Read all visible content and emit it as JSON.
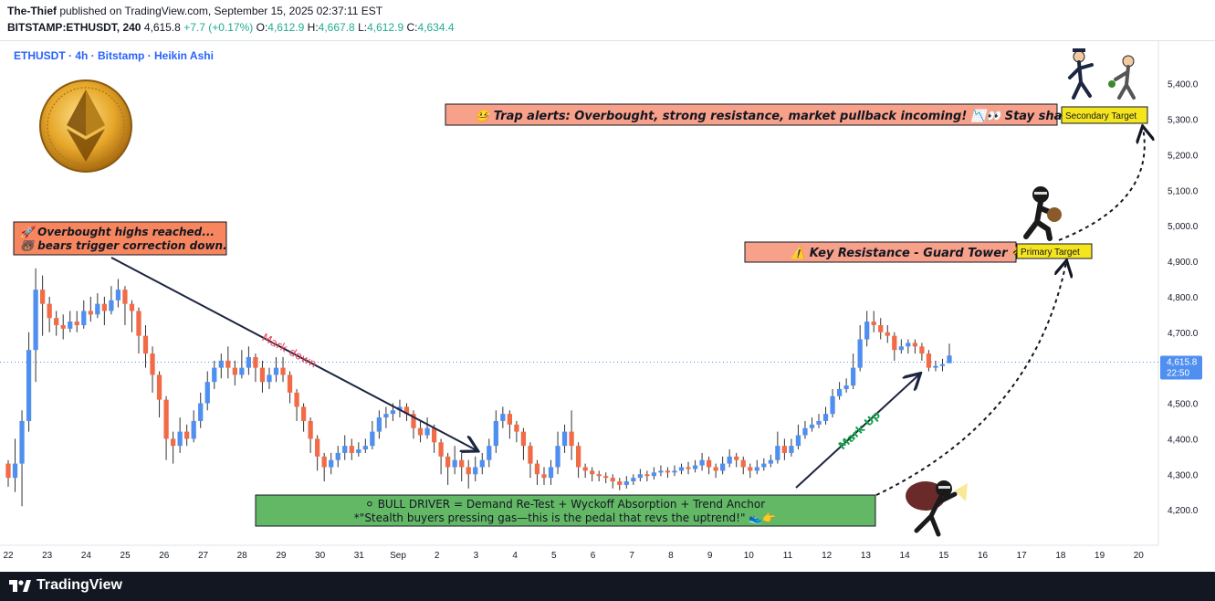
{
  "header": {
    "author": "The-Thief",
    "published_text": " published on TradingView.com, September 15, 2025 02:37:11 EST",
    "symbol": "BITSTAMP:ETHUSDT, 240",
    "last": "4,615.8",
    "change": "+7.7 (+0.17%)",
    "o_label": "O:",
    "o_value": "4,612.9",
    "h_label": "H:",
    "h_value": "4,667.8",
    "l_label": "L:",
    "l_value": "4,612.9",
    "c_label": "C:",
    "c_value": "4,634.4"
  },
  "chart": {
    "legend": "ETHUSDT · 4h · Bitstamp · Heikin Ashi",
    "price_label": "4,615.8",
    "countdown": "22:50",
    "colors": {
      "up": "#4f8ff0",
      "down": "#f26b47",
      "price_line": "#4f8ff0"
    }
  },
  "chart_data": {
    "type": "candlestick",
    "y_ticks": [
      "5,400.0",
      "5,300.0",
      "5,200.0",
      "5,100.0",
      "5,000.0",
      "4,900.0",
      "4,800.0",
      "4,700.0",
      "4,600.0",
      "4,500.0",
      "4,400.0",
      "4,300.0",
      "4,200.0"
    ],
    "ylim": [
      4100,
      5520
    ],
    "x_ticks": [
      "22",
      "23",
      "24",
      "25",
      "26",
      "27",
      "28",
      "29",
      "30",
      "31",
      "Sep",
      "2",
      "3",
      "4",
      "5",
      "6",
      "7",
      "8",
      "9",
      "10",
      "11",
      "12",
      "13",
      "14",
      "15",
      "16",
      "17",
      "18",
      "19",
      "20"
    ],
    "current_price": 4615.8,
    "candles": [
      {
        "o": 4330,
        "c": 4290,
        "h": 4340,
        "l": 4265
      },
      {
        "o": 4290,
        "c": 4330,
        "h": 4400,
        "l": 4250
      },
      {
        "o": 4330,
        "c": 4450,
        "h": 4480,
        "l": 4210
      },
      {
        "o": 4450,
        "c": 4650,
        "h": 4700,
        "l": 4420
      },
      {
        "o": 4650,
        "c": 4820,
        "h": 4880,
        "l": 4560
      },
      {
        "o": 4820,
        "c": 4780,
        "h": 4860,
        "l": 4690
      },
      {
        "o": 4780,
        "c": 4740,
        "h": 4800,
        "l": 4700
      },
      {
        "o": 4740,
        "c": 4720,
        "h": 4760,
        "l": 4690
      },
      {
        "o": 4720,
        "c": 4710,
        "h": 4750,
        "l": 4680
      },
      {
        "o": 4710,
        "c": 4730,
        "h": 4760,
        "l": 4700
      },
      {
        "o": 4730,
        "c": 4720,
        "h": 4760,
        "l": 4700
      },
      {
        "o": 4720,
        "c": 4760,
        "h": 4790,
        "l": 4710
      },
      {
        "o": 4760,
        "c": 4750,
        "h": 4800,
        "l": 4730
      },
      {
        "o": 4750,
        "c": 4780,
        "h": 4810,
        "l": 4740
      },
      {
        "o": 4780,
        "c": 4760,
        "h": 4800,
        "l": 4720
      },
      {
        "o": 4760,
        "c": 4790,
        "h": 4830,
        "l": 4750
      },
      {
        "o": 4790,
        "c": 4820,
        "h": 4850,
        "l": 4770
      },
      {
        "o": 4820,
        "c": 4780,
        "h": 4830,
        "l": 4720
      },
      {
        "o": 4780,
        "c": 4760,
        "h": 4790,
        "l": 4700
      },
      {
        "o": 4760,
        "c": 4690,
        "h": 4770,
        "l": 4640
      },
      {
        "o": 4690,
        "c": 4640,
        "h": 4720,
        "l": 4600
      },
      {
        "o": 4640,
        "c": 4580,
        "h": 4660,
        "l": 4530
      },
      {
        "o": 4580,
        "c": 4510,
        "h": 4590,
        "l": 4460
      },
      {
        "o": 4510,
        "c": 4400,
        "h": 4520,
        "l": 4340
      },
      {
        "o": 4400,
        "c": 4380,
        "h": 4420,
        "l": 4330
      },
      {
        "o": 4380,
        "c": 4420,
        "h": 4460,
        "l": 4360
      },
      {
        "o": 4420,
        "c": 4400,
        "h": 4440,
        "l": 4380
      },
      {
        "o": 4400,
        "c": 4450,
        "h": 4480,
        "l": 4390
      },
      {
        "o": 4450,
        "c": 4500,
        "h": 4530,
        "l": 4430
      },
      {
        "o": 4500,
        "c": 4560,
        "h": 4590,
        "l": 4480
      },
      {
        "o": 4560,
        "c": 4600,
        "h": 4620,
        "l": 4540
      },
      {
        "o": 4600,
        "c": 4620,
        "h": 4640,
        "l": 4570
      },
      {
        "o": 4620,
        "c": 4600,
        "h": 4660,
        "l": 4570
      },
      {
        "o": 4600,
        "c": 4580,
        "h": 4620,
        "l": 4550
      },
      {
        "o": 4580,
        "c": 4600,
        "h": 4650,
        "l": 4570
      },
      {
        "o": 4600,
        "c": 4630,
        "h": 4660,
        "l": 4580
      },
      {
        "o": 4630,
        "c": 4600,
        "h": 4640,
        "l": 4560
      },
      {
        "o": 4600,
        "c": 4560,
        "h": 4620,
        "l": 4530
      },
      {
        "o": 4560,
        "c": 4580,
        "h": 4600,
        "l": 4540
      },
      {
        "o": 4580,
        "c": 4600,
        "h": 4630,
        "l": 4560
      },
      {
        "o": 4600,
        "c": 4580,
        "h": 4630,
        "l": 4560
      },
      {
        "o": 4580,
        "c": 4530,
        "h": 4590,
        "l": 4500
      },
      {
        "o": 4530,
        "c": 4490,
        "h": 4540,
        "l": 4450
      },
      {
        "o": 4490,
        "c": 4450,
        "h": 4500,
        "l": 4420
      },
      {
        "o": 4450,
        "c": 4400,
        "h": 4460,
        "l": 4360
      },
      {
        "o": 4400,
        "c": 4350,
        "h": 4410,
        "l": 4310
      },
      {
        "o": 4350,
        "c": 4320,
        "h": 4360,
        "l": 4280
      },
      {
        "o": 4320,
        "c": 4340,
        "h": 4360,
        "l": 4300
      },
      {
        "o": 4340,
        "c": 4360,
        "h": 4380,
        "l": 4320
      },
      {
        "o": 4360,
        "c": 4380,
        "h": 4410,
        "l": 4340
      },
      {
        "o": 4380,
        "c": 4360,
        "h": 4400,
        "l": 4340
      },
      {
        "o": 4360,
        "c": 4370,
        "h": 4390,
        "l": 4350
      },
      {
        "o": 4370,
        "c": 4380,
        "h": 4400,
        "l": 4360
      },
      {
        "o": 4380,
        "c": 4420,
        "h": 4450,
        "l": 4370
      },
      {
        "o": 4420,
        "c": 4460,
        "h": 4480,
        "l": 4400
      },
      {
        "o": 4460,
        "c": 4470,
        "h": 4490,
        "l": 4430
      },
      {
        "o": 4470,
        "c": 4480,
        "h": 4500,
        "l": 4450
      },
      {
        "o": 4480,
        "c": 4490,
        "h": 4510,
        "l": 4460
      },
      {
        "o": 4490,
        "c": 4470,
        "h": 4500,
        "l": 4450
      },
      {
        "o": 4470,
        "c": 4430,
        "h": 4480,
        "l": 4400
      },
      {
        "o": 4430,
        "c": 4410,
        "h": 4450,
        "l": 4390
      },
      {
        "o": 4410,
        "c": 4430,
        "h": 4460,
        "l": 4400
      },
      {
        "o": 4430,
        "c": 4390,
        "h": 4440,
        "l": 4360
      },
      {
        "o": 4390,
        "c": 4350,
        "h": 4400,
        "l": 4300
      },
      {
        "o": 4350,
        "c": 4320,
        "h": 4360,
        "l": 4270
      },
      {
        "o": 4320,
        "c": 4340,
        "h": 4380,
        "l": 4300
      },
      {
        "o": 4340,
        "c": 4320,
        "h": 4360,
        "l": 4280
      },
      {
        "o": 4320,
        "c": 4300,
        "h": 4340,
        "l": 4260
      },
      {
        "o": 4300,
        "c": 4320,
        "h": 4350,
        "l": 4280
      },
      {
        "o": 4320,
        "c": 4340,
        "h": 4360,
        "l": 4300
      },
      {
        "o": 4340,
        "c": 4380,
        "h": 4400,
        "l": 4320
      },
      {
        "o": 4380,
        "c": 4450,
        "h": 4480,
        "l": 4360
      },
      {
        "o": 4450,
        "c": 4470,
        "h": 4490,
        "l": 4430
      },
      {
        "o": 4470,
        "c": 4440,
        "h": 4480,
        "l": 4400
      },
      {
        "o": 4440,
        "c": 4420,
        "h": 4450,
        "l": 4390
      },
      {
        "o": 4420,
        "c": 4380,
        "h": 4430,
        "l": 4340
      },
      {
        "o": 4380,
        "c": 4330,
        "h": 4390,
        "l": 4290
      },
      {
        "o": 4330,
        "c": 4300,
        "h": 4340,
        "l": 4270
      },
      {
        "o": 4300,
        "c": 4290,
        "h": 4320,
        "l": 4270
      },
      {
        "o": 4290,
        "c": 4320,
        "h": 4340,
        "l": 4270
      },
      {
        "o": 4320,
        "c": 4380,
        "h": 4420,
        "l": 4300
      },
      {
        "o": 4380,
        "c": 4420,
        "h": 4440,
        "l": 4360
      },
      {
        "o": 4420,
        "c": 4380,
        "h": 4480,
        "l": 4340
      },
      {
        "o": 4380,
        "c": 4320,
        "h": 4390,
        "l": 4290
      },
      {
        "o": 4320,
        "c": 4310,
        "h": 4330,
        "l": 4290
      },
      {
        "o": 4310,
        "c": 4300,
        "h": 4320,
        "l": 4280
      },
      {
        "o": 4300,
        "c": 4295,
        "h": 4310,
        "l": 4280
      },
      {
        "o": 4295,
        "c": 4290,
        "h": 4305,
        "l": 4275
      },
      {
        "o": 4290,
        "c": 4280,
        "h": 4300,
        "l": 4260
      },
      {
        "o": 4280,
        "c": 4270,
        "h": 4290,
        "l": 4255
      },
      {
        "o": 4270,
        "c": 4280,
        "h": 4295,
        "l": 4260
      },
      {
        "o": 4280,
        "c": 4290,
        "h": 4300,
        "l": 4270
      },
      {
        "o": 4290,
        "c": 4300,
        "h": 4315,
        "l": 4280
      },
      {
        "o": 4300,
        "c": 4295,
        "h": 4310,
        "l": 4280
      },
      {
        "o": 4295,
        "c": 4305,
        "h": 4320,
        "l": 4285
      },
      {
        "o": 4305,
        "c": 4310,
        "h": 4325,
        "l": 4295
      },
      {
        "o": 4310,
        "c": 4305,
        "h": 4320,
        "l": 4290
      },
      {
        "o": 4305,
        "c": 4310,
        "h": 4325,
        "l": 4295
      },
      {
        "o": 4310,
        "c": 4320,
        "h": 4330,
        "l": 4300
      },
      {
        "o": 4320,
        "c": 4315,
        "h": 4335,
        "l": 4300
      },
      {
        "o": 4315,
        "c": 4325,
        "h": 4340,
        "l": 4305
      },
      {
        "o": 4325,
        "c": 4340,
        "h": 4360,
        "l": 4310
      },
      {
        "o": 4340,
        "c": 4320,
        "h": 4350,
        "l": 4300
      },
      {
        "o": 4320,
        "c": 4310,
        "h": 4330,
        "l": 4290
      },
      {
        "o": 4310,
        "c": 4330,
        "h": 4350,
        "l": 4300
      },
      {
        "o": 4330,
        "c": 4350,
        "h": 4370,
        "l": 4320
      },
      {
        "o": 4350,
        "c": 4340,
        "h": 4360,
        "l": 4320
      },
      {
        "o": 4340,
        "c": 4320,
        "h": 4350,
        "l": 4300
      },
      {
        "o": 4320,
        "c": 4310,
        "h": 4330,
        "l": 4290
      },
      {
        "o": 4310,
        "c": 4320,
        "h": 4340,
        "l": 4300
      },
      {
        "o": 4320,
        "c": 4330,
        "h": 4345,
        "l": 4310
      },
      {
        "o": 4330,
        "c": 4340,
        "h": 4355,
        "l": 4320
      },
      {
        "o": 4340,
        "c": 4380,
        "h": 4420,
        "l": 4330
      },
      {
        "o": 4380,
        "c": 4360,
        "h": 4400,
        "l": 4340
      },
      {
        "o": 4360,
        "c": 4380,
        "h": 4400,
        "l": 4350
      },
      {
        "o": 4380,
        "c": 4410,
        "h": 4440,
        "l": 4370
      },
      {
        "o": 4410,
        "c": 4430,
        "h": 4450,
        "l": 4400
      },
      {
        "o": 4430,
        "c": 4440,
        "h": 4460,
        "l": 4420
      },
      {
        "o": 4440,
        "c": 4450,
        "h": 4470,
        "l": 4430
      },
      {
        "o": 4450,
        "c": 4470,
        "h": 4490,
        "l": 4440
      },
      {
        "o": 4470,
        "c": 4520,
        "h": 4540,
        "l": 4460
      },
      {
        "o": 4520,
        "c": 4540,
        "h": 4560,
        "l": 4510
      },
      {
        "o": 4540,
        "c": 4550,
        "h": 4570,
        "l": 4530
      },
      {
        "o": 4550,
        "c": 4600,
        "h": 4640,
        "l": 4540
      },
      {
        "o": 4600,
        "c": 4680,
        "h": 4720,
        "l": 4590
      },
      {
        "o": 4680,
        "c": 4730,
        "h": 4760,
        "l": 4660
      },
      {
        "o": 4730,
        "c": 4720,
        "h": 4760,
        "l": 4700
      },
      {
        "o": 4720,
        "c": 4700,
        "h": 4740,
        "l": 4680
      },
      {
        "o": 4700,
        "c": 4690,
        "h": 4720,
        "l": 4670
      },
      {
        "o": 4690,
        "c": 4650,
        "h": 4700,
        "l": 4620
      },
      {
        "o": 4650,
        "c": 4660,
        "h": 4680,
        "l": 4640
      },
      {
        "o": 4660,
        "c": 4670,
        "h": 4680,
        "l": 4640
      },
      {
        "o": 4670,
        "c": 4660,
        "h": 4680,
        "l": 4640
      },
      {
        "o": 4660,
        "c": 4640,
        "h": 4670,
        "l": 4620
      },
      {
        "o": 4640,
        "c": 4600,
        "h": 4650,
        "l": 4590
      },
      {
        "o": 4600,
        "c": 4605,
        "h": 4620,
        "l": 4590
      },
      {
        "o": 4605,
        "c": 4610,
        "h": 4625,
        "l": 4590
      },
      {
        "o": 4612.9,
        "c": 4634.4,
        "h": 4667.8,
        "l": 4612.9
      }
    ]
  },
  "annotations": {
    "trap_alert": "🤒 Trap alerts: Overbought, strong resistance, market pullback incoming! 📉👀 Stay sharp! 💡",
    "secondary_target": "Secondary Target",
    "key_resistance": "⚠️ Key Resistance - Guard Tower 🚧",
    "primary_target": "Primary Target",
    "overbought_line1": "🚀 Overbought highs reached...",
    "overbought_line2": "🐻 bears trigger correction down.",
    "mark_down": "Mark down",
    "mark_up": "Mark Up",
    "bull_driver_line1": "⚪ BULL DRIVER = Demand Re-Test + Wyckoff Absorption + Trend Anchor",
    "bull_driver_line2": "*\"Stealth buyers pressing gas—this is the pedal that revs the uptrend!\" 👟👉"
  },
  "footer": {
    "brand": "TradingView"
  }
}
